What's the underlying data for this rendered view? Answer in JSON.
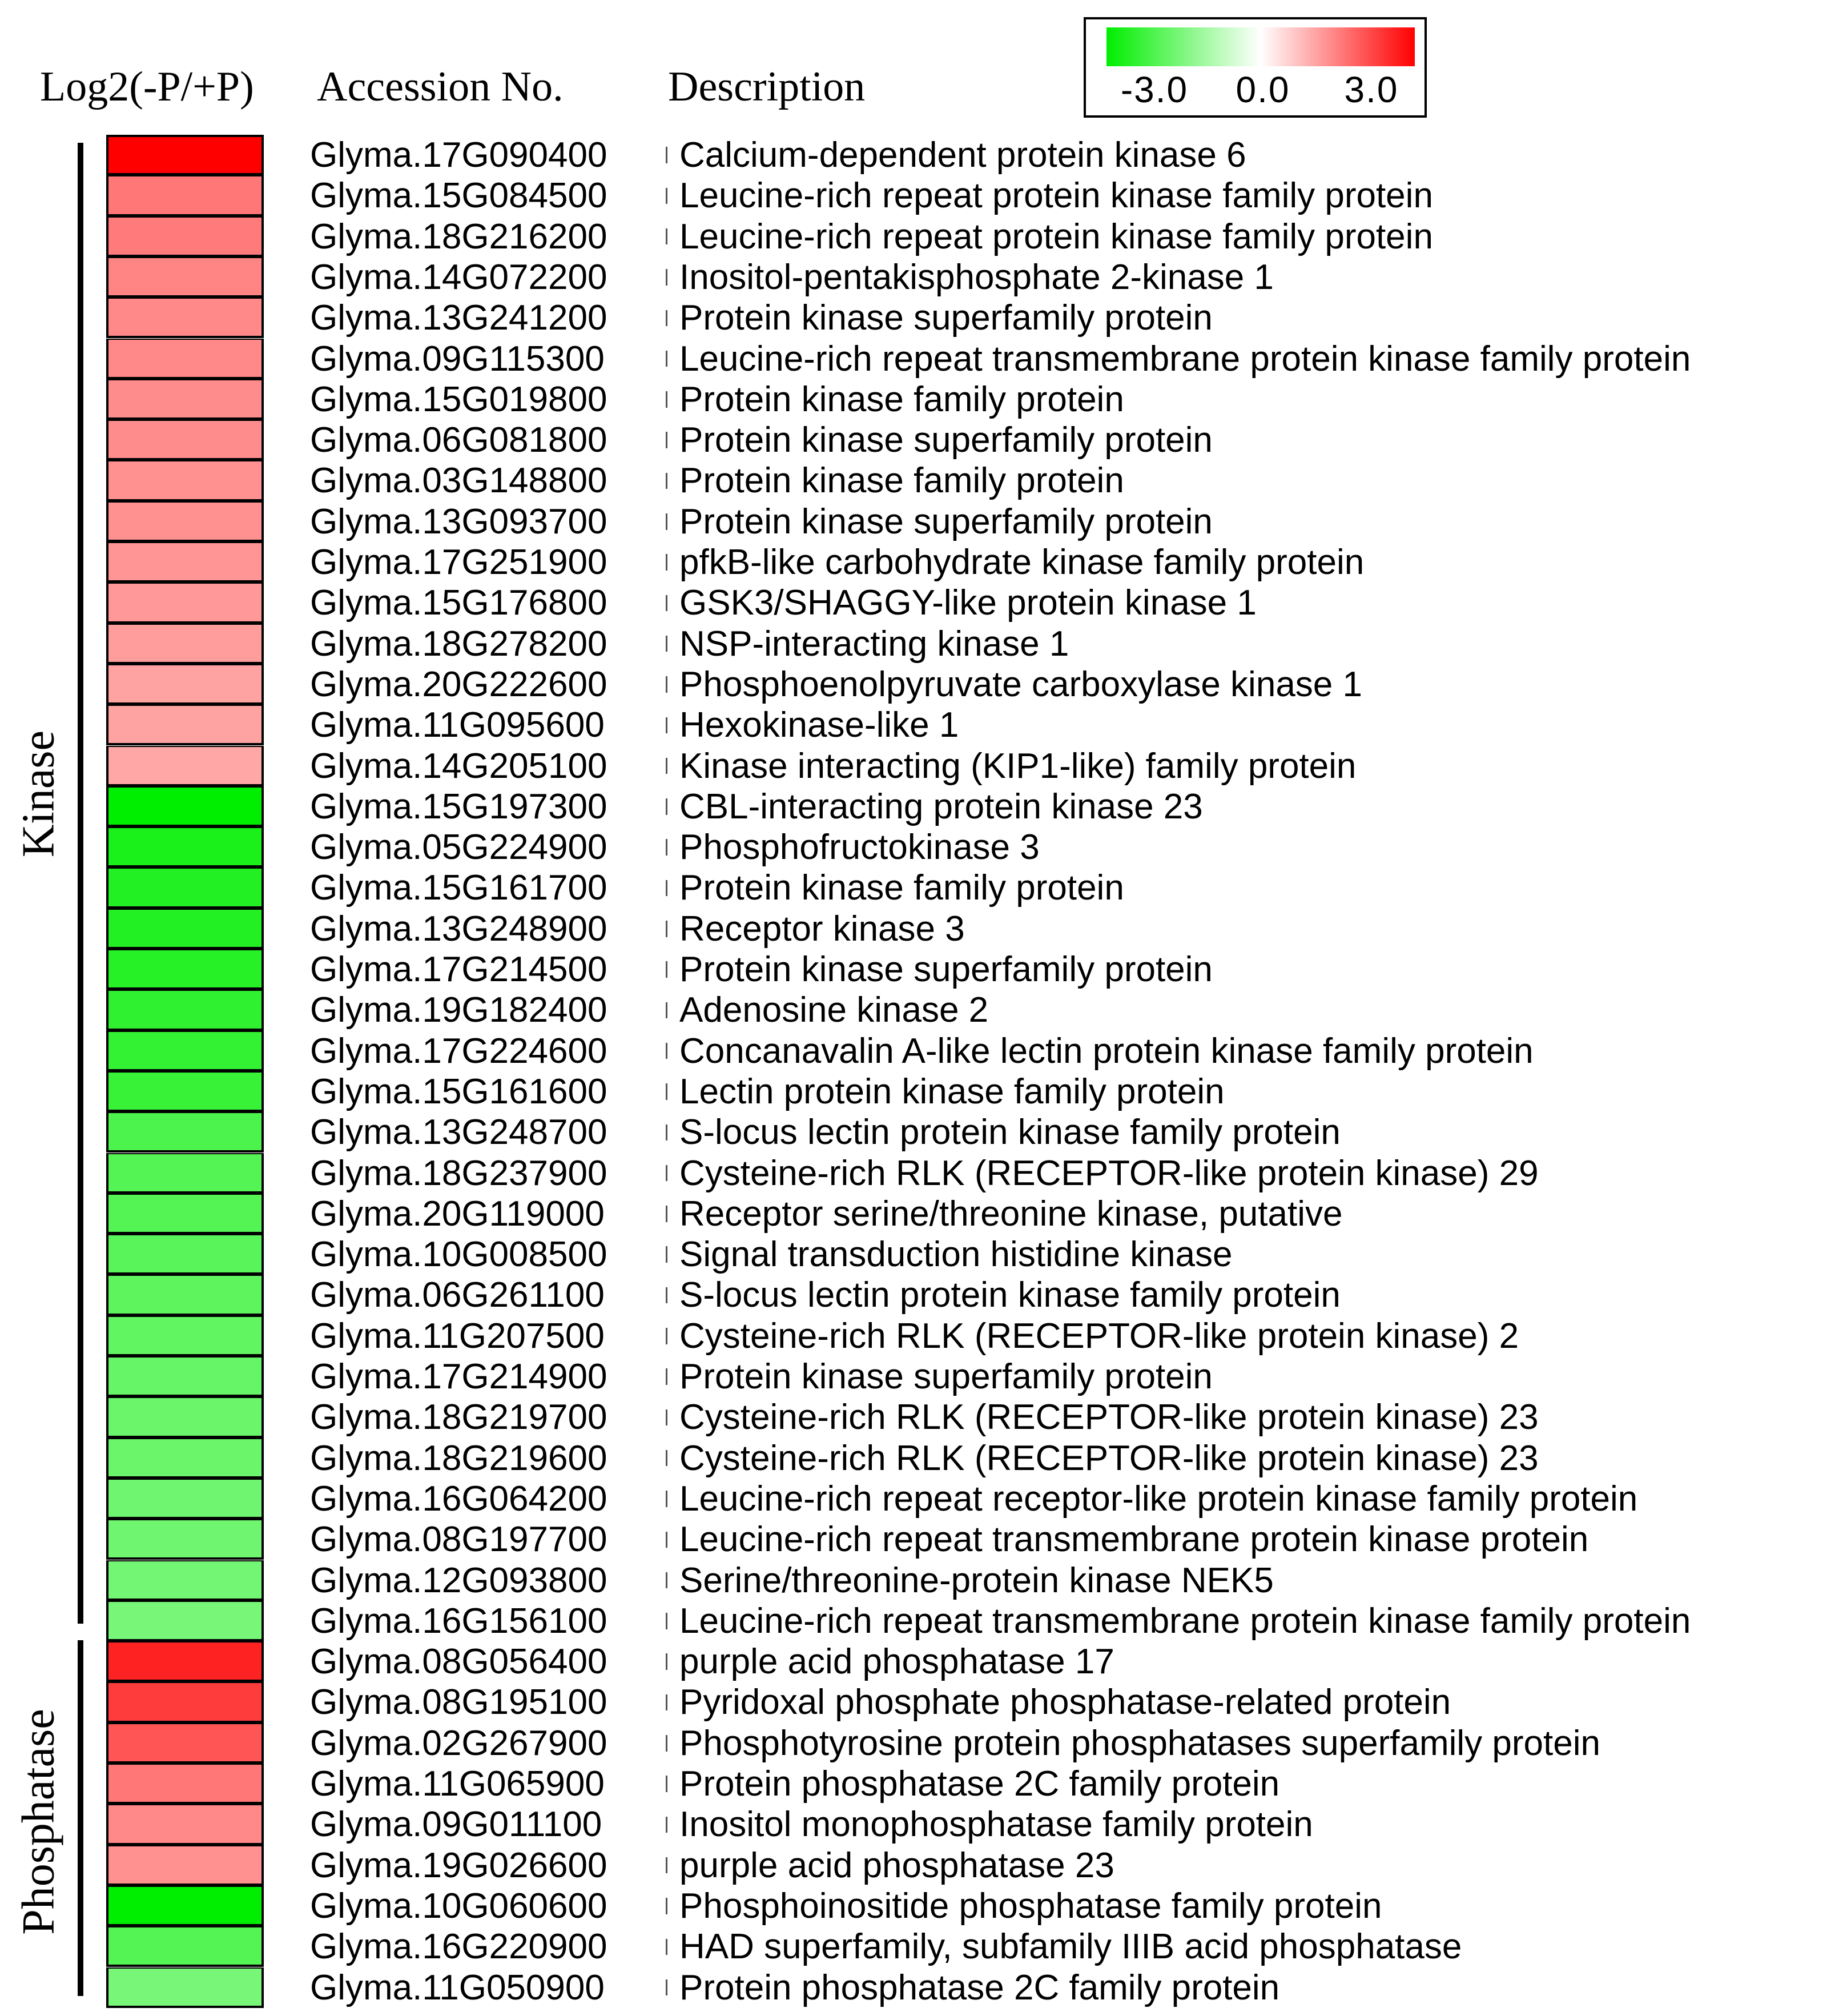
{
  "chart_data": {
    "type": "heatmap",
    "headers": [
      "Log2(-P/+P)",
      "Accession No.",
      "Description"
    ],
    "legend": {
      "labels": [
        "-3.0",
        "0.0",
        "3.0"
      ],
      "min": -3.0,
      "mid": 0.0,
      "max": 3.0,
      "colors": {
        "low": "#00ee00",
        "mid": "#ffffff",
        "high": "#ff0000"
      }
    },
    "groups": [
      {
        "name": "Kinase",
        "rows": [
          {
            "accession": "Glyma.17G090400",
            "description": "Calcium-dependent protein kinase 6",
            "value": 3.0
          },
          {
            "accession": "Glyma.15G084500",
            "description": "Leucine-rich repeat protein kinase family protein",
            "value": 1.6
          },
          {
            "accession": "Glyma.18G216200",
            "description": "Leucine-rich repeat protein kinase family protein",
            "value": 1.55
          },
          {
            "accession": "Glyma.14G072200",
            "description": "Inositol-pentakisphosphate 2-kinase 1",
            "value": 1.45
          },
          {
            "accession": "Glyma.13G241200",
            "description": "Protein kinase superfamily protein",
            "value": 1.4
          },
          {
            "accession": "Glyma.09G115300",
            "description": "Leucine-rich repeat transmembrane protein kinase family protein",
            "value": 1.4
          },
          {
            "accession": "Glyma.15G019800",
            "description": "Protein kinase family protein",
            "value": 1.35
          },
          {
            "accession": "Glyma.06G081800",
            "description": "Protein kinase superfamily protein",
            "value": 1.35
          },
          {
            "accession": "Glyma.03G148800",
            "description": "Protein kinase family protein",
            "value": 1.3
          },
          {
            "accession": "Glyma.13G093700",
            "description": "Protein kinase superfamily protein",
            "value": 1.3
          },
          {
            "accession": "Glyma.17G251900",
            "description": "pfkB-like carbohydrate kinase family protein",
            "value": 1.25
          },
          {
            "accession": "Glyma.15G176800",
            "description": "GSK3/SHAGGY-like protein kinase 1",
            "value": 1.2
          },
          {
            "accession": "Glyma.18G278200",
            "description": "NSP-interacting kinase 1",
            "value": 1.15
          },
          {
            "accession": "Glyma.20G222600",
            "description": "Phosphoenolpyruvate carboxylase kinase 1",
            "value": 1.1
          },
          {
            "accession": "Glyma.11G095600",
            "description": "Hexokinase-like 1",
            "value": 1.1
          },
          {
            "accession": "Glyma.14G205100",
            "description": "Kinase interacting (KIP1-like) family protein",
            "value": 1.05
          },
          {
            "accession": "Glyma.15G197300",
            "description": "CBL-interacting protein kinase 23",
            "value": -3.0
          },
          {
            "accession": "Glyma.05G224900",
            "description": "Phosphofructokinase 3",
            "value": -2.7
          },
          {
            "accession": "Glyma.15G161700",
            "description": "Protein kinase family protein",
            "value": -2.6
          },
          {
            "accession": "Glyma.13G248900",
            "description": "Receptor kinase 3",
            "value": -2.6
          },
          {
            "accession": "Glyma.17G214500",
            "description": "Protein kinase superfamily protein",
            "value": -2.55
          },
          {
            "accession": "Glyma.19G182400",
            "description": "Adenosine kinase 2",
            "value": -2.45
          },
          {
            "accession": "Glyma.17G224600",
            "description": "Concanavalin A-like lectin protein kinase family protein",
            "value": -2.4
          },
          {
            "accession": "Glyma.15G161600",
            "description": "Lectin protein kinase family protein",
            "value": -2.35
          },
          {
            "accession": "Glyma.13G248700",
            "description": "S-locus lectin protein kinase family protein",
            "value": -2.1
          },
          {
            "accession": "Glyma.18G237900",
            "description": "Cysteine-rich RLK (RECEPTOR-like protein kinase) 29",
            "value": -2.0
          },
          {
            "accession": "Glyma.20G119000",
            "description": "Receptor serine/threonine kinase, putative",
            "value": -2.0
          },
          {
            "accession": "Glyma.10G008500",
            "description": "Signal transduction histidine kinase",
            "value": -1.95
          },
          {
            "accession": "Glyma.06G261100",
            "description": "S-locus lectin protein kinase family protein",
            "value": -1.9
          },
          {
            "accession": "Glyma.11G207500",
            "description": "Cysteine-rich RLK (RECEPTOR-like protein kinase) 2",
            "value": -1.85
          },
          {
            "accession": "Glyma.17G214900",
            "description": "Protein kinase superfamily protein",
            "value": -1.8
          },
          {
            "accession": "Glyma.18G219700",
            "description": "Cysteine-rich RLK (RECEPTOR-like protein kinase) 23",
            "value": -1.75
          },
          {
            "accession": "Glyma.18G219600",
            "description": "Cysteine-rich RLK (RECEPTOR-like protein kinase) 23",
            "value": -1.75
          },
          {
            "accession": "Glyma.16G064200",
            "description": "Leucine-rich repeat receptor-like protein kinase family protein",
            "value": -1.7
          },
          {
            "accession": "Glyma.08G197700",
            "description": "Leucine-rich repeat transmembrane protein kinase protein",
            "value": -1.7
          },
          {
            "accession": "Glyma.12G093800",
            "description": "Serine/threonine-protein kinase NEK5",
            "value": -1.65
          },
          {
            "accession": "Glyma.16G156100",
            "description": "Leucine-rich repeat transmembrane protein kinase family protein",
            "value": -1.6
          }
        ]
      },
      {
        "name": "Phosphatase",
        "rows": [
          {
            "accession": "Glyma.08G056400",
            "description": "purple acid phosphatase 17",
            "value": 2.6
          },
          {
            "accession": "Glyma.08G195100",
            "description": "Pyridoxal phosphate phosphatase-related protein",
            "value": 2.3
          },
          {
            "accession": "Glyma.02G267900",
            "description": "Phosphotyrosine protein phosphatases superfamily protein",
            "value": 2.0
          },
          {
            "accession": "Glyma.11G065900",
            "description": "Protein phosphatase 2C family protein",
            "value": 1.6
          },
          {
            "accession": "Glyma.09G011100",
            "description": "Inositol monophosphatase family protein",
            "value": 1.4
          },
          {
            "accession": "Glyma.19G026600",
            "description": "purple acid phosphatase 23",
            "value": 1.3
          },
          {
            "accession": "Glyma.10G060600",
            "description": "Phosphoinositide phosphatase family protein",
            "value": -3.0
          },
          {
            "accession": "Glyma.16G220900",
            "description": "HAD superfamily, subfamily IIIB acid phosphatase",
            "value": -2.0
          },
          {
            "accession": "Glyma.11G050900",
            "description": "Protein phosphatase 2C family protein",
            "value": -1.6
          }
        ]
      }
    ]
  }
}
